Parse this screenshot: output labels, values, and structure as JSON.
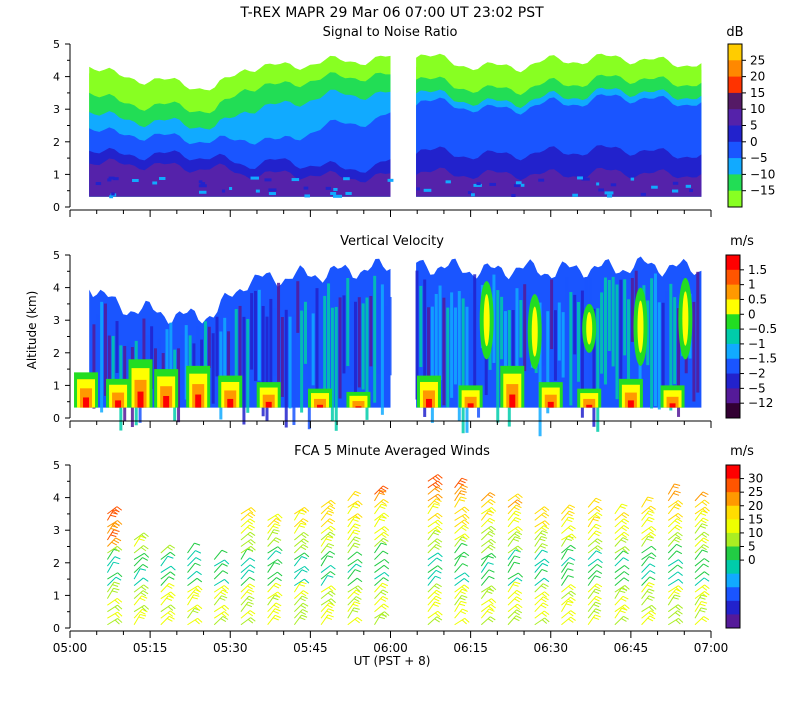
{
  "figure": {
    "title": "T-REX   MAPR 29 Mar 06   07:00 UT   23:02   PST",
    "xlabel": "UT  (PST + 8)",
    "ylabel": "Altitude (km)"
  },
  "chart_data": [
    {
      "type": "heatmap",
      "title": "Signal to Noise Ratio",
      "units": "dB",
      "ylim": [
        0,
        5
      ],
      "yticks": [
        "0",
        "1",
        "2",
        "3",
        "4",
        "5"
      ],
      "colorbar": {
        "labels": [
          "25",
          "20",
          "15",
          "10",
          "5",
          "0",
          "−5",
          "−10",
          "−15"
        ],
        "colors": [
          "#ffcc00",
          "#ff8800",
          "#ff3300",
          "#551a66",
          "#5522aa",
          "#2222cc",
          "#1a55ff",
          "#11aaff",
          "#22dd55",
          "#88ff22"
        ]
      },
      "profile": {
        "times": [
          5.05,
          5.15,
          5.25,
          5.35,
          5.45,
          5.55,
          5.65,
          5.75,
          5.85,
          5.95,
          6.1,
          6.2,
          6.3,
          6.4,
          6.5,
          6.6,
          6.7,
          6.8,
          6.9
        ],
        "tops": [
          4.4,
          4.0,
          3.9,
          3.8,
          3.6,
          4.3,
          4.3,
          4.4,
          4.5,
          4.5,
          4.7,
          4.4,
          4.3,
          4.3,
          4.5,
          4.5,
          4.6,
          4.5,
          4.4
        ],
        "layer_tops": [
          [
            4.2,
            3.8,
            3.7,
            3.6,
            3.4,
            4.1,
            4.1,
            4.2,
            4.3,
            4.3,
            4.4,
            4.2,
            4.1,
            4.1,
            4.3,
            4.3,
            4.4,
            4.3,
            4.2
          ],
          [
            3.6,
            3.2,
            3.1,
            3.1,
            2.9,
            3.7,
            3.7,
            3.9,
            4.0,
            4.0,
            4.0,
            3.7,
            3.6,
            3.6,
            3.8,
            3.8,
            4.0,
            3.9,
            3.8
          ],
          [
            3.0,
            2.7,
            2.6,
            2.6,
            2.4,
            3.0,
            3.1,
            3.3,
            3.5,
            3.4,
            3.6,
            3.3,
            3.2,
            3.2,
            3.4,
            3.4,
            3.6,
            3.5,
            3.4
          ],
          [
            2.5,
            2.2,
            2.2,
            2.1,
            2.0,
            2.1,
            2.0,
            2.3,
            2.6,
            2.6,
            3.3,
            3.1,
            3.0,
            3.0,
            3.2,
            3.2,
            3.4,
            3.3,
            3.2
          ],
          [
            1.8,
            1.6,
            1.6,
            1.6,
            1.5,
            1.3,
            1.4,
            1.3,
            1.2,
            1.2,
            1.8,
            1.6,
            1.6,
            1.6,
            1.7,
            1.7,
            1.8,
            1.7,
            1.6
          ],
          [
            1.4,
            1.3,
            1.3,
            1.2,
            1.2,
            1.0,
            1.0,
            1.0,
            0.9,
            0.9,
            1.1,
            1.0,
            1.0,
            1.0,
            1.0,
            1.0,
            1.1,
            1.0,
            1.0
          ]
        ],
        "layer_colors": [
          "#88ff22",
          "#22dd55",
          "#11aaff",
          "#1a55ff",
          "#2222cc",
          "#5522aa"
        ]
      }
    },
    {
      "type": "heatmap",
      "title": "Vertical Velocity",
      "units": "m/s",
      "ylim": [
        0,
        5
      ],
      "yticks": [
        "0",
        "1",
        "2",
        "3",
        "4",
        "5"
      ],
      "colorbar": {
        "labels": [
          "1.5",
          "1",
          "0.5",
          "0",
          "−0.5",
          "−1",
          "−1.5",
          "−2",
          "−5",
          "−12"
        ],
        "colors": [
          "#ff0000",
          "#ff5500",
          "#ff9900",
          "#ffff00",
          "#22dd22",
          "#00ccaa",
          "#11aaff",
          "#1a55ff",
          "#2222cc",
          "#551a99",
          "#330033"
        ]
      },
      "profile": {
        "times": [
          5.05,
          5.15,
          5.25,
          5.35,
          5.45,
          5.55,
          5.65,
          5.75,
          5.85,
          5.95,
          6.1,
          6.2,
          6.3,
          6.4,
          6.5,
          6.6,
          6.7,
          6.8,
          6.9
        ],
        "tops": [
          4.2,
          3.4,
          3.3,
          3.1,
          3.2,
          4.2,
          4.3,
          4.4,
          4.5,
          4.6,
          4.7,
          4.6,
          4.5,
          4.6,
          4.5,
          4.6,
          4.6,
          4.7,
          4.6
        ]
      },
      "warm_cells": [
        {
          "t": 5.05,
          "h": 1.4
        },
        {
          "t": 5.15,
          "h": 1.2
        },
        {
          "t": 5.22,
          "h": 1.8
        },
        {
          "t": 5.3,
          "h": 1.5
        },
        {
          "t": 5.4,
          "h": 1.6
        },
        {
          "t": 5.5,
          "h": 1.3
        },
        {
          "t": 5.62,
          "h": 1.1
        },
        {
          "t": 5.78,
          "h": 0.9
        },
        {
          "t": 5.9,
          "h": 0.8
        },
        {
          "t": 6.12,
          "h": 1.3
        },
        {
          "t": 6.25,
          "h": 1.0
        },
        {
          "t": 6.38,
          "h": 1.6
        },
        {
          "t": 6.5,
          "h": 1.1
        },
        {
          "t": 6.62,
          "h": 0.9
        },
        {
          "t": 6.75,
          "h": 1.2
        },
        {
          "t": 6.88,
          "h": 1.0
        }
      ],
      "plumes": [
        {
          "t": 6.3,
          "h0": 1.8,
          "h1": 4.2
        },
        {
          "t": 6.45,
          "h0": 1.5,
          "h1": 3.8
        },
        {
          "t": 6.62,
          "h0": 2.0,
          "h1": 3.5
        },
        {
          "t": 6.78,
          "h0": 1.6,
          "h1": 4.0
        },
        {
          "t": 6.92,
          "h0": 1.8,
          "h1": 4.3
        }
      ]
    },
    {
      "type": "scatter",
      "title": "FCA 5 Minute Averaged Winds",
      "units": "m/s",
      "ylim": [
        0,
        5
      ],
      "yticks": [
        "0",
        "1",
        "2",
        "3",
        "4",
        "5"
      ],
      "xticks": [
        "05:00",
        "05:15",
        "05:30",
        "05:45",
        "06:00",
        "06:15",
        "06:30",
        "06:45",
        "07:00"
      ],
      "colorbar": {
        "labels": [
          "30",
          "25",
          "20",
          "15",
          "10",
          "5",
          "0"
        ],
        "colors": [
          "#ff0000",
          "#ff5500",
          "#ff9900",
          "#ffdd00",
          "#eeff00",
          "#aaee22",
          "#22cc44",
          "#00ccaa",
          "#11aaff",
          "#1a55ff",
          "#2222cc",
          "#551a99"
        ]
      },
      "wind_times": [
        "05:07",
        "05:12",
        "05:17",
        "05:22",
        "05:27",
        "05:32",
        "05:37",
        "05:42",
        "05:47",
        "05:52",
        "05:57",
        "06:07",
        "06:12",
        "06:17",
        "06:22",
        "06:27",
        "06:32",
        "06:37",
        "06:42",
        "06:47",
        "06:52",
        "06:57"
      ],
      "wind_tops": [
        3.7,
        2.9,
        2.3,
        2.3,
        2.2,
        3.6,
        3.5,
        3.6,
        3.9,
        4.0,
        4.2,
        4.6,
        4.5,
        4.1,
        4.1,
        3.7,
        3.6,
        3.8,
        3.7,
        3.9,
        4.2,
        4.1
      ],
      "speed_scale_max": 30
    }
  ]
}
